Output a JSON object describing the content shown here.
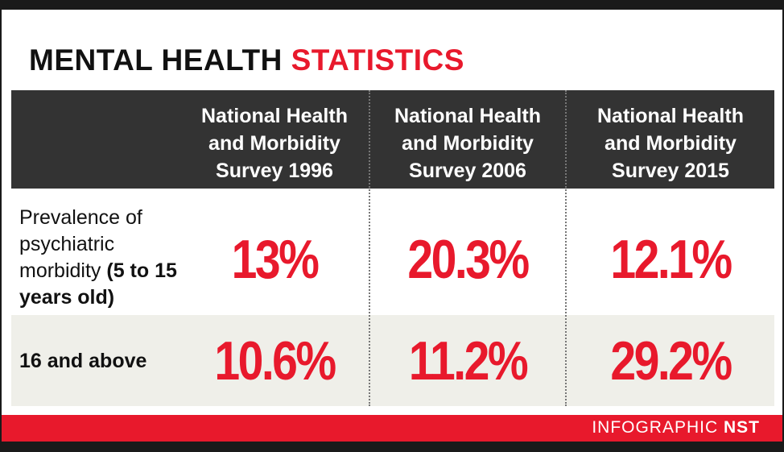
{
  "title": {
    "part1": "MENTAL HEALTH",
    "part2": "STATISTICS"
  },
  "colors": {
    "accent": "#e8192c",
    "header_bg": "#333333",
    "alt_row_bg": "#efefe9"
  },
  "chart_data": {
    "type": "table",
    "columns": [
      "National Health and Morbidity Survey 1996",
      "National Health and Morbidity Survey 2006",
      "National Health and Morbidity Survey 2015"
    ],
    "rows": [
      {
        "label_plain": "Prevalence of psychiatric morbidity",
        "label_bold": "(5 to 15 years old)",
        "values": [
          "13%",
          "20.3%",
          "12.1%"
        ]
      },
      {
        "label_plain": "",
        "label_bold": "16 and above",
        "values": [
          "10.6%",
          "11.2%",
          "29.2%"
        ]
      }
    ]
  },
  "footer": {
    "credit_plain": "INFOGRAPHIC",
    "credit_bold": "NST"
  }
}
